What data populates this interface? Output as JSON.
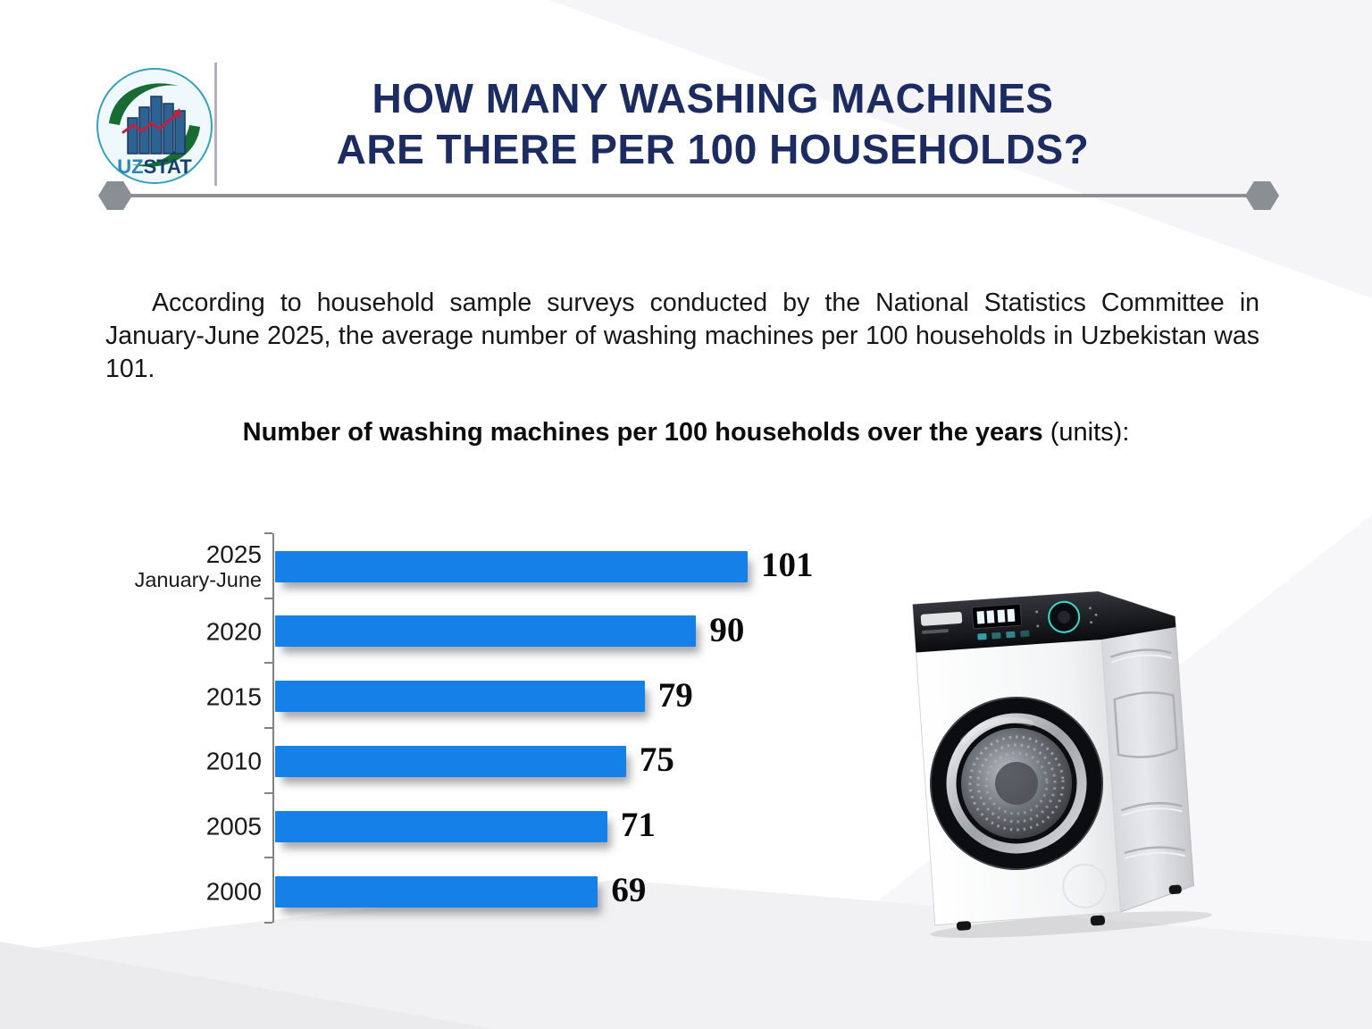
{
  "logo": {
    "name": "UZSTAT statistics committee logo",
    "text_uz": "UZ",
    "text_stat": "STAT",
    "uz_color": "#2e86b8",
    "stat_color": "#173f6e"
  },
  "header": {
    "title_line1": "HOW MANY WASHING MACHINES",
    "title_line2": "ARE THERE PER 100 HOUSEHOLDS?",
    "title_color": "#1c2b60"
  },
  "intro": {
    "text": "According to household sample surveys conducted by the National Statistics Committee in January-June 2025, the average number of washing machines per 100 households in Uzbekistan was 101."
  },
  "chart_heading": {
    "bold": "Number of washing machines per 100 households over the years",
    "normal": " (units):"
  },
  "chart_data": {
    "type": "bar",
    "orientation": "horizontal",
    "title": "Number of washing machines per 100 households over the years (units)",
    "categories": [
      "2025\nJanuary-June",
      "2020",
      "2015",
      "2010",
      "2005",
      "2000"
    ],
    "values": [
      101,
      90,
      79,
      75,
      71,
      69
    ],
    "xlim": [
      0,
      108
    ],
    "grid": false,
    "legend": false,
    "bar_color": "#1580e8",
    "value_label_color": "#0a0a0a",
    "axis_color": "#808285"
  },
  "divider": {
    "line_color": "#8c9094",
    "end_cap_shape": "hexagon",
    "end_cap_color": "#8a8f94"
  }
}
